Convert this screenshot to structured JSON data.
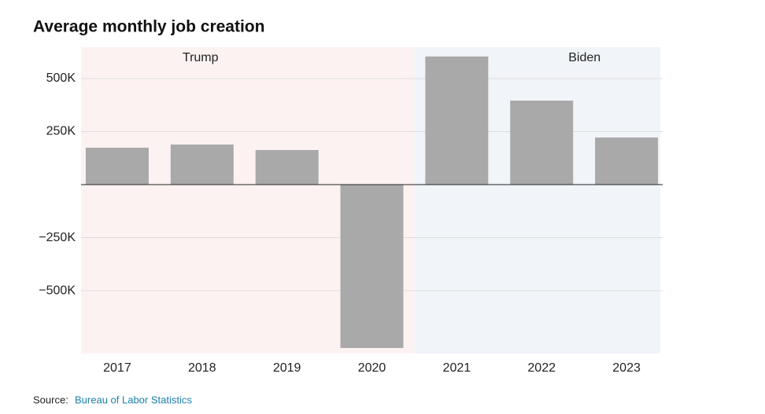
{
  "chart_data": {
    "type": "bar",
    "title": "Average monthly job creation",
    "categories": [
      "2017",
      "2018",
      "2019",
      "2020",
      "2021",
      "2022",
      "2023"
    ],
    "values": [
      174000,
      189000,
      163000,
      -770000,
      604000,
      396000,
      222000
    ],
    "color": "#a9a9a9",
    "ylim": [
      -796000,
      648000
    ],
    "yticks": [
      {
        "value": -500000,
        "label": "−500K"
      },
      {
        "value": -250000,
        "label": "−250K"
      },
      {
        "value": 250000,
        "label": "250K"
      },
      {
        "value": 500000,
        "label": "500K"
      }
    ],
    "grid": true,
    "periods": [
      {
        "label": "Trump",
        "from": "2017",
        "to": "2020",
        "color": "#fdf2f2"
      },
      {
        "label": "Biden",
        "from": "2021",
        "to": "2023",
        "color": "#f1f4f9"
      }
    ],
    "source_label": "Source:",
    "source": "Bureau of Labor Statistics"
  }
}
